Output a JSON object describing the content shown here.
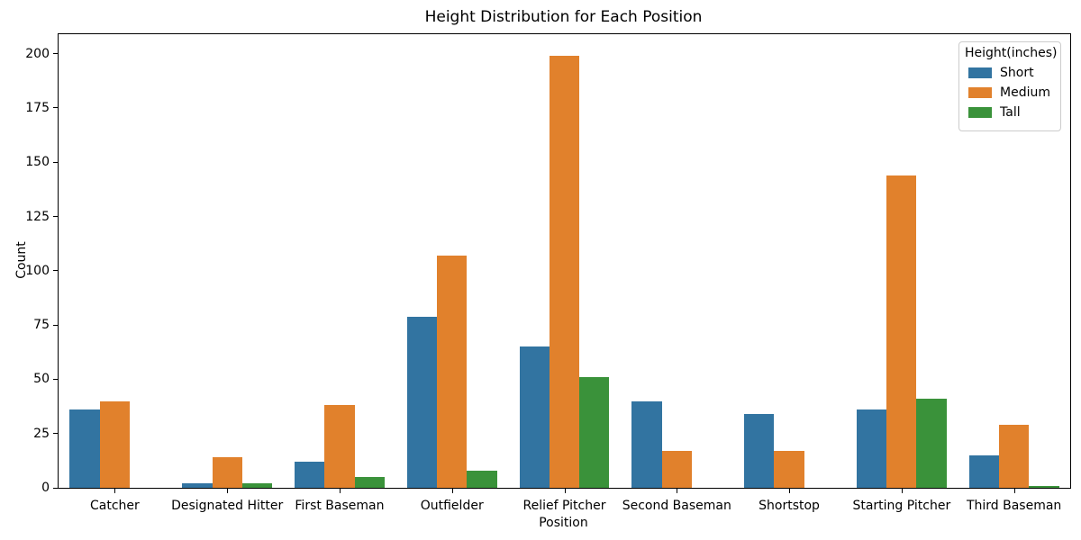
{
  "chart_data": {
    "type": "bar",
    "title": "Height Distribution for Each Position",
    "xlabel": "Position",
    "ylabel": "Count",
    "legend_title": "Height(inches)",
    "legend_position": "upper right",
    "grid": false,
    "background": "#ffffff",
    "categories": [
      "Catcher",
      "Designated Hitter",
      "First Baseman",
      "Outfielder",
      "Relief Pitcher",
      "Second Baseman",
      "Shortstop",
      "Starting Pitcher",
      "Third Baseman"
    ],
    "series": [
      {
        "name": "Short",
        "color": "#3274a1",
        "values": [
          36,
          2,
          12,
          79,
          65,
          40,
          34,
          36,
          15
        ]
      },
      {
        "name": "Medium",
        "color": "#e1812c",
        "values": [
          40,
          14,
          38,
          107,
          199,
          17,
          17,
          144,
          29
        ]
      },
      {
        "name": "Tall",
        "color": "#3a923a",
        "values": [
          0,
          2,
          5,
          8,
          51,
          0,
          0,
          41,
          1
        ]
      }
    ],
    "ylim": [
      0,
      209
    ],
    "yticks": [
      0,
      25,
      50,
      75,
      100,
      125,
      150,
      175,
      200
    ]
  }
}
